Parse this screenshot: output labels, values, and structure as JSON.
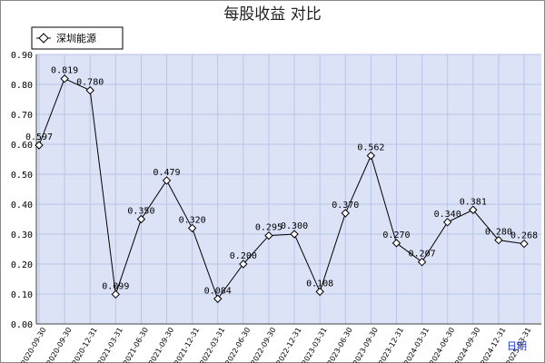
{
  "chart_data": {
    "type": "line",
    "title": "每股收益 对比",
    "xlabel": "日期",
    "ylabel": "",
    "ylim": [
      0,
      0.9
    ],
    "yticks": [
      "0.00",
      "0.10",
      "0.20",
      "0.30",
      "0.40",
      "0.50",
      "0.60",
      "0.70",
      "0.80",
      "0.90"
    ],
    "grid": true,
    "legend_position": "top-left",
    "colors": {
      "plot_bg": "#dde3f7",
      "grid": "#b9c4e6",
      "line": "#000000",
      "unit": "#1a33cc"
    },
    "categories": [
      "2020-09-30",
      "2020-09-30",
      "2020-12-31",
      "2021-03-31",
      "2021-06-30",
      "2021-09-30",
      "2021-12-31",
      "2022-03-31",
      "2022-06-30",
      "2022-09-30",
      "2022-12-31",
      "2023-03-31",
      "2023-06-30",
      "2023-09-30",
      "2023-12-31",
      "2024-03-31",
      "2024-06-30",
      "2024-09-30",
      "2024-12-31",
      "2025-03-31"
    ],
    "series": [
      {
        "name": "深圳能源",
        "values": [
          0.597,
          0.819,
          0.78,
          0.099,
          0.35,
          0.479,
          0.32,
          0.084,
          0.2,
          0.295,
          0.3,
          0.108,
          0.37,
          0.562,
          0.27,
          0.207,
          0.34,
          0.381,
          0.28,
          0.268
        ],
        "labels": [
          "0.597",
          "0.819",
          "0.780",
          "0.099",
          "0.350",
          "0.479",
          "0.320",
          "0.084",
          "0.200",
          "0.295",
          "0.300",
          "0.108",
          "0.370",
          "0.562",
          "0.270",
          "0.207",
          "0.340",
          "0.381",
          "0.280",
          "0.268"
        ]
      }
    ]
  }
}
